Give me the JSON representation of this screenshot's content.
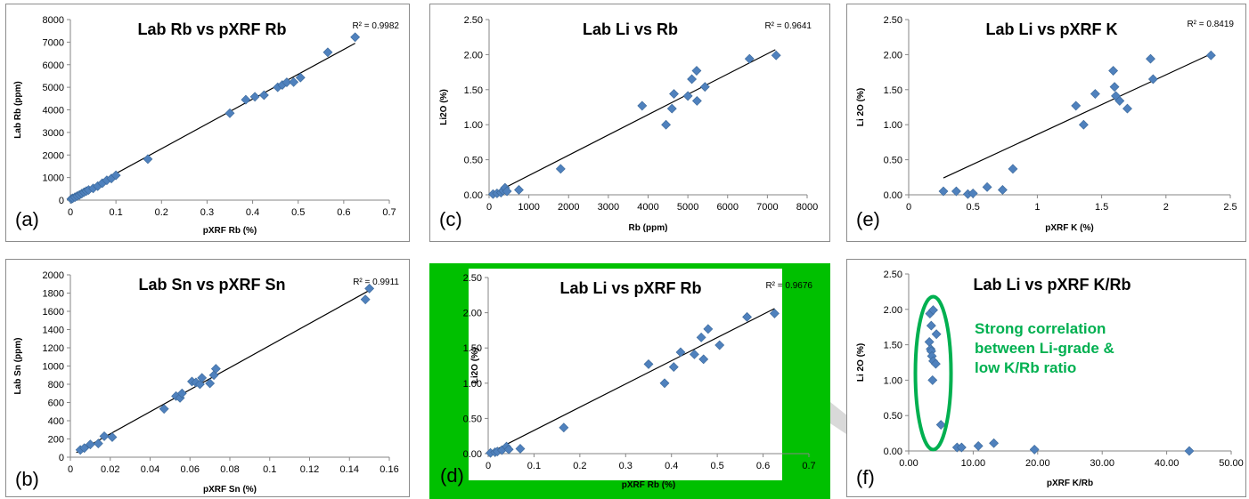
{
  "colors": {
    "marker": "#4f81bd",
    "marker_edge": "#3a6798",
    "trendline": "#000000",
    "axis": "#868686",
    "highlight_green": "#00c000",
    "annotation_green": "#00b050",
    "connector_gray": "#d9d9d9"
  },
  "chart_data": [
    {
      "id": "a",
      "type": "scatter",
      "panel_label": "(a)",
      "title": "Lab Rb vs pXRF Rb",
      "xlabel": "pXRF Rb (%)",
      "ylabel": "Lab Rb (ppm)",
      "r2_text": "R² = 0.9982",
      "xlim": [
        0,
        0.7
      ],
      "ylim": [
        0,
        8000
      ],
      "x_ticks": [
        "0",
        "0.1",
        "0.2",
        "0.3",
        "0.4",
        "0.5",
        "0.6",
        "0.7"
      ],
      "y_ticks": [
        "0",
        "1000",
        "2000",
        "3000",
        "4000",
        "5000",
        "6000",
        "7000",
        "8000"
      ],
      "x_tick_values": [
        0,
        0.1,
        0.2,
        0.3,
        0.4,
        0.5,
        0.6,
        0.7
      ],
      "y_tick_values": [
        0,
        1000,
        2000,
        3000,
        4000,
        5000,
        6000,
        7000,
        8000
      ],
      "trendline": [
        [
          0,
          80
        ],
        [
          0.625,
          6950
        ]
      ],
      "points": [
        [
          0.002,
          50
        ],
        [
          0.005,
          80
        ],
        [
          0.01,
          130
        ],
        [
          0.015,
          180
        ],
        [
          0.02,
          230
        ],
        [
          0.025,
          290
        ],
        [
          0.03,
          350
        ],
        [
          0.035,
          400
        ],
        [
          0.04,
          450
        ],
        [
          0.05,
          520
        ],
        [
          0.06,
          620
        ],
        [
          0.07,
          750
        ],
        [
          0.08,
          880
        ],
        [
          0.09,
          960
        ],
        [
          0.1,
          1100
        ],
        [
          0.17,
          1820
        ],
        [
          0.35,
          3850
        ],
        [
          0.385,
          4450
        ],
        [
          0.405,
          4580
        ],
        [
          0.425,
          4650
        ],
        [
          0.455,
          5000
        ],
        [
          0.465,
          5100
        ],
        [
          0.475,
          5220
        ],
        [
          0.49,
          5230
        ],
        [
          0.505,
          5430
        ],
        [
          0.565,
          6550
        ],
        [
          0.625,
          7220
        ]
      ]
    },
    {
      "id": "b",
      "type": "scatter",
      "panel_label": "(b)",
      "title": "Lab Sn vs pXRF Sn",
      "xlabel": "pXRF Sn (%)",
      "ylabel": "Lab Sn (ppm)",
      "r2_text": "R² = 0.9911",
      "xlim": [
        0,
        0.16
      ],
      "ylim": [
        0,
        2000
      ],
      "x_ticks": [
        "0",
        "0.02",
        "0.04",
        "0.06",
        "0.08",
        "0.1",
        "0.12",
        "0.14",
        "0.16"
      ],
      "y_ticks": [
        "0",
        "200",
        "400",
        "600",
        "800",
        "1000",
        "1200",
        "1400",
        "1600",
        "1800",
        "2000"
      ],
      "x_tick_values": [
        0,
        0.02,
        0.04,
        0.06,
        0.08,
        0.1,
        0.12,
        0.14,
        0.16
      ],
      "y_tick_values": [
        0,
        200,
        400,
        600,
        800,
        1000,
        1200,
        1400,
        1600,
        1800,
        2000
      ],
      "trendline": [
        [
          0.003,
          50
        ],
        [
          0.15,
          1830
        ]
      ],
      "points": [
        [
          0.005,
          80
        ],
        [
          0.007,
          100
        ],
        [
          0.01,
          140
        ],
        [
          0.014,
          150
        ],
        [
          0.017,
          230
        ],
        [
          0.021,
          220
        ],
        [
          0.047,
          530
        ],
        [
          0.053,
          670
        ],
        [
          0.055,
          650
        ],
        [
          0.056,
          700
        ],
        [
          0.061,
          830
        ],
        [
          0.063,
          820
        ],
        [
          0.065,
          800
        ],
        [
          0.066,
          870
        ],
        [
          0.07,
          810
        ],
        [
          0.072,
          900
        ],
        [
          0.073,
          970
        ],
        [
          0.148,
          1730
        ],
        [
          0.15,
          1850
        ]
      ]
    },
    {
      "id": "c",
      "type": "scatter",
      "panel_label": "(c)",
      "title": "Lab Li vs Rb",
      "xlabel": "Rb (ppm)",
      "ylabel": "Li2O (%)",
      "r2_text": "R² = 0.9641",
      "xlim": [
        0,
        8000
      ],
      "ylim": [
        0,
        2.5
      ],
      "x_ticks": [
        "0",
        "1000",
        "2000",
        "3000",
        "4000",
        "5000",
        "6000",
        "7000",
        "8000"
      ],
      "y_ticks": [
        "0.00",
        "0.50",
        "1.00",
        "1.50",
        "2.00",
        "2.50"
      ],
      "x_tick_values": [
        0,
        1000,
        2000,
        3000,
        4000,
        5000,
        6000,
        7000,
        8000
      ],
      "y_tick_values": [
        0,
        0.5,
        1,
        1.5,
        2,
        2.5
      ],
      "trendline": [
        [
          50,
          0.0
        ],
        [
          7200,
          2.07
        ]
      ],
      "points": [
        [
          100,
          0.01
        ],
        [
          200,
          0.02
        ],
        [
          300,
          0.03
        ],
        [
          350,
          0.06
        ],
        [
          400,
          0.1
        ],
        [
          450,
          0.05
        ],
        [
          750,
          0.07
        ],
        [
          1800,
          0.37
        ],
        [
          3850,
          1.27
        ],
        [
          4450,
          1.0
        ],
        [
          4600,
          1.23
        ],
        [
          4650,
          1.44
        ],
        [
          5000,
          1.41
        ],
        [
          5100,
          1.65
        ],
        [
          5220,
          1.77
        ],
        [
          5230,
          1.34
        ],
        [
          5430,
          1.54
        ],
        [
          6550,
          1.94
        ],
        [
          7220,
          1.99
        ]
      ]
    },
    {
      "id": "d",
      "type": "scatter",
      "panel_label": "(d)",
      "title": "Lab Li vs pXRF Rb",
      "xlabel": "pXRF Rb (%)",
      "ylabel": "Li2O (%)",
      "r2_text": "R² = 0.9676",
      "xlim": [
        0,
        0.7
      ],
      "ylim": [
        0,
        2.5
      ],
      "x_ticks": [
        "0",
        "0.1",
        "0.2",
        "0.3",
        "0.4",
        "0.5",
        "0.6",
        "0.7"
      ],
      "y_ticks": [
        "0.00",
        "0.50",
        "1.00",
        "1.50",
        "2.00",
        "2.50"
      ],
      "x_tick_values": [
        0,
        0.1,
        0.2,
        0.3,
        0.4,
        0.5,
        0.6,
        0.7
      ],
      "y_tick_values": [
        0,
        0.5,
        1,
        1.5,
        2,
        2.5
      ],
      "trendline": [
        [
          0,
          0.0
        ],
        [
          0.625,
          2.06
        ]
      ],
      "points": [
        [
          0.005,
          0.01
        ],
        [
          0.015,
          0.02
        ],
        [
          0.02,
          0.03
        ],
        [
          0.03,
          0.05
        ],
        [
          0.04,
          0.1
        ],
        [
          0.045,
          0.06
        ],
        [
          0.07,
          0.07
        ],
        [
          0.165,
          0.37
        ],
        [
          0.35,
          1.27
        ],
        [
          0.385,
          1.0
        ],
        [
          0.405,
          1.23
        ],
        [
          0.42,
          1.44
        ],
        [
          0.45,
          1.41
        ],
        [
          0.465,
          1.65
        ],
        [
          0.48,
          1.77
        ],
        [
          0.47,
          1.34
        ],
        [
          0.505,
          1.54
        ],
        [
          0.565,
          1.94
        ],
        [
          0.625,
          1.99
        ]
      ]
    },
    {
      "id": "e",
      "type": "scatter",
      "panel_label": "(e)",
      "title": "Lab Li vs pXRF K",
      "xlabel": "pXRF K (%)",
      "ylabel": "Li 2O (%)",
      "r2_text": "R² = 0.8419",
      "xlim": [
        0,
        2.5
      ],
      "ylim": [
        0,
        2.5
      ],
      "x_ticks": [
        "0",
        "0.5",
        "1",
        "1.5",
        "2",
        "2.5"
      ],
      "y_ticks": [
        "0.00",
        "0.50",
        "1.00",
        "1.50",
        "2.00",
        "2.50"
      ],
      "x_tick_values": [
        0,
        0.5,
        1,
        1.5,
        2,
        2.5
      ],
      "y_tick_values": [
        0,
        0.5,
        1,
        1.5,
        2,
        2.5
      ],
      "trendline": [
        [
          0.27,
          0.24
        ],
        [
          2.35,
          2.01
        ]
      ],
      "points": [
        [
          0.27,
          0.05
        ],
        [
          0.37,
          0.05
        ],
        [
          0.46,
          0.01
        ],
        [
          0.5,
          0.02
        ],
        [
          0.61,
          0.11
        ],
        [
          0.73,
          0.07
        ],
        [
          0.81,
          0.37
        ],
        [
          1.3,
          1.27
        ],
        [
          1.36,
          1.0
        ],
        [
          1.45,
          1.44
        ],
        [
          1.59,
          1.77
        ],
        [
          1.6,
          1.54
        ],
        [
          1.61,
          1.41
        ],
        [
          1.64,
          1.34
        ],
        [
          1.7,
          1.23
        ],
        [
          1.88,
          1.94
        ],
        [
          1.9,
          1.65
        ],
        [
          2.35,
          1.99
        ]
      ]
    },
    {
      "id": "f",
      "type": "scatter",
      "panel_label": "(f)",
      "title": "Lab Li vs pXRF K/Rb",
      "xlabel": "pXRF K/Rb",
      "ylabel": "Li 2O (%)",
      "annotation": [
        "Strong correlation",
        "between Li-grade &",
        "low K/Rb ratio"
      ],
      "xlim": [
        0,
        50
      ],
      "ylim": [
        0,
        2.5
      ],
      "x_ticks": [
        "0.00",
        "10.00",
        "20.00",
        "30.00",
        "40.00",
        "50.00"
      ],
      "y_ticks": [
        "0.00",
        "0.50",
        "1.00",
        "1.50",
        "2.00",
        "2.50"
      ],
      "x_tick_values": [
        0,
        10,
        20,
        30,
        40,
        50
      ],
      "y_tick_values": [
        0,
        0.5,
        1,
        1.5,
        2,
        2.5
      ],
      "points": [
        [
          3.3,
          1.94
        ],
        [
          3.8,
          1.99
        ],
        [
          3.5,
          1.77
        ],
        [
          3.2,
          1.54
        ],
        [
          3.4,
          1.44
        ],
        [
          3.5,
          1.41
        ],
        [
          3.6,
          1.34
        ],
        [
          3.8,
          1.27
        ],
        [
          4.2,
          1.23
        ],
        [
          4.3,
          1.65
        ],
        [
          3.7,
          1.0
        ],
        [
          5.0,
          0.37
        ],
        [
          7.5,
          0.05
        ],
        [
          8.2,
          0.05
        ],
        [
          10.8,
          0.07
        ],
        [
          13.2,
          0.11
        ],
        [
          19.5,
          0.02
        ],
        [
          43.5,
          0.0
        ]
      ]
    }
  ]
}
